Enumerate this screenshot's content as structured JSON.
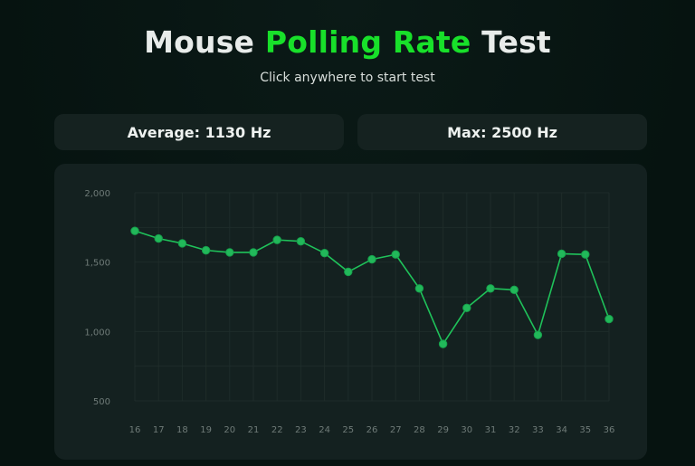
{
  "header": {
    "title_part1": "Mouse",
    "title_part2": "Polling Rate",
    "title_part3": "Test",
    "subtitle": "Click anywhere to start test"
  },
  "stats": {
    "average_label": "Average:",
    "average_value": "1130 Hz",
    "max_label": "Max:",
    "max_value": "2500 Hz"
  },
  "colors": {
    "accent": "#18e02a",
    "line": "#1fc25a",
    "point": "#22b85a",
    "grid": "#1e2c2a"
  },
  "chart_data": {
    "type": "line",
    "title": "",
    "xlabel": "",
    "ylabel": "",
    "x": [
      "16",
      "17",
      "18",
      "19",
      "20",
      "21",
      "22",
      "23",
      "24",
      "25",
      "26",
      "27",
      "28",
      "29",
      "30",
      "31",
      "32",
      "33",
      "34",
      "35",
      "36"
    ],
    "values": [
      1725,
      1670,
      1635,
      1585,
      1570,
      1570,
      1660,
      1650,
      1565,
      1430,
      1520,
      1555,
      1310,
      910,
      1170,
      1310,
      1300,
      975,
      1560,
      1555,
      1090
    ],
    "ylim": [
      500,
      2000
    ],
    "yticks": [
      500,
      1000,
      1500,
      2000
    ],
    "ytick_labels": [
      "500",
      "1,000",
      "1,500",
      "2,000"
    ],
    "grid": true,
    "legend": "none"
  }
}
